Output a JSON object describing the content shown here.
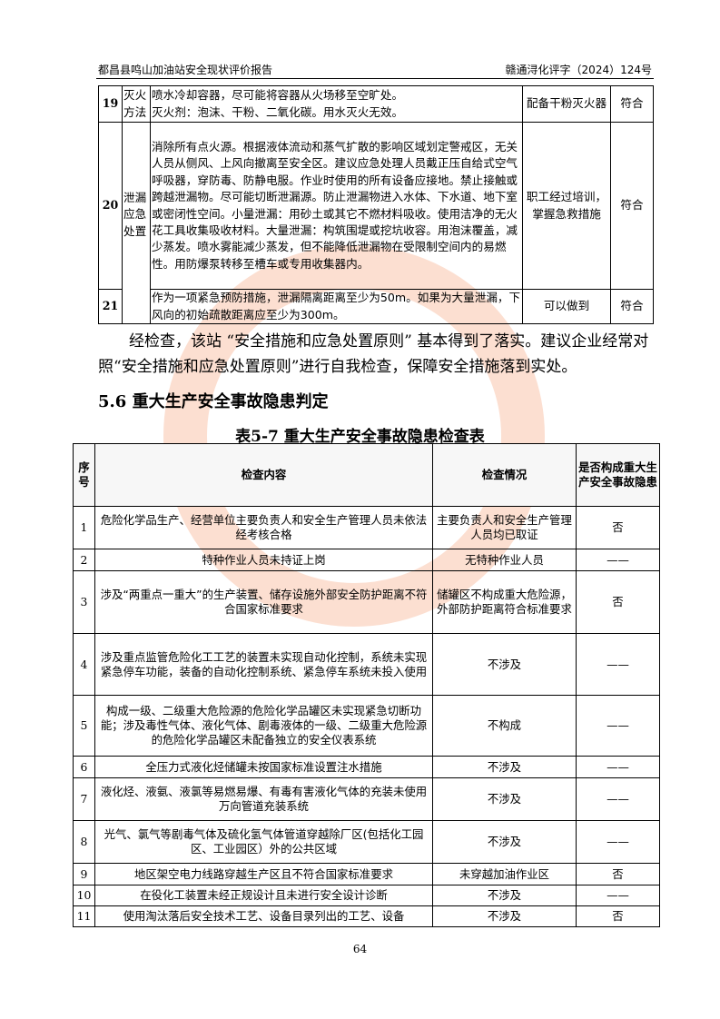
{
  "header": {
    "left": "都昌县鸣山加油站安全现状评价报告",
    "right": "赣通浔化评字（2024）124号"
  },
  "table1": {
    "rows": [
      {
        "no": "19",
        "category": "灭火方法",
        "content": "喷水冷却容器，尽可能将容器从火场移至空旷处。\n灭火剂：泡沫、干粉、二氧化碳。用水灭火无效。",
        "measure": "配备干粉灭火器",
        "result": "符合"
      },
      {
        "no": "20",
        "category": "泄漏应急处置",
        "content": "消除所有点火源。根据液体流动和蒸气扩散的影响区域划定警戒区，无关人员从侧风、上风向撤离至安全区。建议应急处理人员戴正压自给式空气呼吸器，穿防毒、防静电服。作业时使用的所有设备应接地。禁止接触或跨越泄漏物。尽可能切断泄漏源。防止泄漏物进入水体、下水道、地下室或密闭性空间。小量泄漏：用砂土或其它不燃材料吸收。使用洁净的无火花工具收集吸收材料。大量泄漏：构筑围堤或挖坑收容。用泡沫覆盖，减少蒸发。喷水雾能减少蒸发，但不能降低泄漏物在受限制空间内的易燃性。用防爆泵转移至槽车或专用收集器内。",
        "measure": "职工经过培训，掌握急救措施",
        "result": "符合"
      },
      {
        "no": "21",
        "category": "",
        "content": "作为一项紧急预防措施，泄漏隔离距离至少为50m。如果为大量泄漏，下风向的初始疏散距离应至少为300m。",
        "measure": "可以做到",
        "result": "符合"
      }
    ]
  },
  "paragraph": "经检查，该站 “安全措施和应急处置原则” 基本得到了落实。建议企业经常对照“安全措施和应急处置原则”进行自我检查，保障安全措施落到实处。",
  "section_title": "5.6 重大生产安全事故隐患判定",
  "table2": {
    "caption": "表5-7 重大生产安全事故隐患检查表",
    "headers": [
      "序号",
      "检查内容",
      "检查情况",
      "是否构成重大生产安全事故隐患"
    ],
    "rows": [
      {
        "no": "1",
        "content": "危险化学品生产、经营单位主要负责人和安全生产管理人员未依法经考核合格",
        "status": "主要负责人和安全生产管理人员均已取证",
        "hazard": "否"
      },
      {
        "no": "2",
        "content": "特种作业人员未持证上岗",
        "status": "无特种作业人员",
        "hazard": "——"
      },
      {
        "no": "3",
        "content": "涉及“两重点一重大”的生产装置、储存设施外部安全防护距离不符合国家标准要求",
        "status": "储罐区不构成重大危险源，外部防护距离符合标准要求",
        "hazard": "否"
      },
      {
        "no": "4",
        "content": "涉及重点监管危险化工工艺的装置未实现自动化控制，系统未实现紧急停车功能，装备的自动化控制系统、紧急停车系统未投入使用",
        "status": "不涉及",
        "hazard": "——"
      },
      {
        "no": "5",
        "content": "构成一级、二级重大危险源的危险化学品罐区未实现紧急切断功能；涉及毒性气体、液化气体、剧毒液体的一级、二级重大危险源的危险化学品罐区未配备独立的安全仪表系统",
        "status": "不构成",
        "hazard": "——"
      },
      {
        "no": "6",
        "content": "全压力式液化烃储罐未按国家标准设置注水措施",
        "status": "不涉及",
        "hazard": "——"
      },
      {
        "no": "7",
        "content": "液化烃、液氨、液氯等易燃易爆、有毒有害液化气体的充装未使用万向管道充装系统",
        "status": "不涉及",
        "hazard": "——"
      },
      {
        "no": "8",
        "content": "光气、氯气等剧毒气体及硫化氢气体管道穿越除厂区(包括化工园区、工业园区）外的公共区域",
        "status": "不涉及",
        "hazard": "——"
      },
      {
        "no": "9",
        "content": "地区架空电力线路穿越生产区且不符合国家标准要求",
        "status": "未穿越加油作业区",
        "hazard": "否"
      },
      {
        "no": "10",
        "content": "在役化工装置未经正规设计且未进行安全设计诊断",
        "status": "不涉及",
        "hazard": "——"
      },
      {
        "no": "11",
        "content": "使用淘汰落后安全技术工艺、设备目录列出的工艺、设备",
        "status": "不涉及",
        "hazard": "否"
      }
    ]
  },
  "page_number": "64",
  "colors": {
    "watermark": "#f48c5a"
  }
}
